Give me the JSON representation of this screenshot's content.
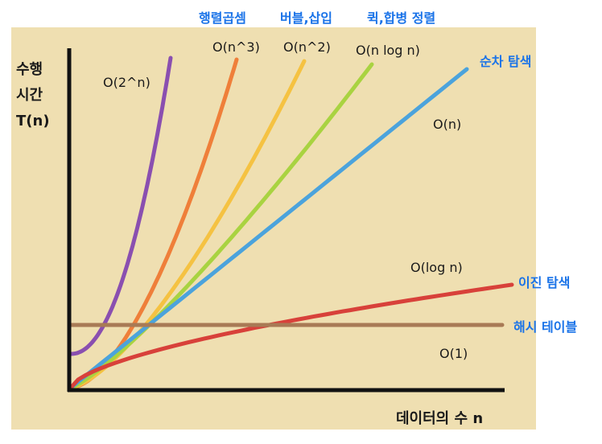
{
  "chart_data": {
    "type": "line",
    "ylabel_lines": [
      "수행",
      "시간",
      "T(n)"
    ],
    "xlabel": "데이터의 수 n",
    "background": "#efdfb1",
    "axis_color": "#111111",
    "series": [
      {
        "name": "O(2^n)",
        "color": "#8a4fb0",
        "note": ""
      },
      {
        "name": "O(n^3)",
        "color": "#ef7f3a",
        "note": "행렬곱셈"
      },
      {
        "name": "O(n^2)",
        "color": "#f5c242",
        "note": "버블,삽입"
      },
      {
        "name": "O(n log n)",
        "color": "#a9d341",
        "note": "퀵,합병 정렬"
      },
      {
        "name": "O(n)",
        "color": "#4ba3dc",
        "note": "순차 탐색"
      },
      {
        "name": "O(log n)",
        "color": "#d8413a",
        "note": "이진 탐색"
      },
      {
        "name": "O(1)",
        "color": "#a87a55",
        "note": "해시 테이블"
      }
    ]
  }
}
